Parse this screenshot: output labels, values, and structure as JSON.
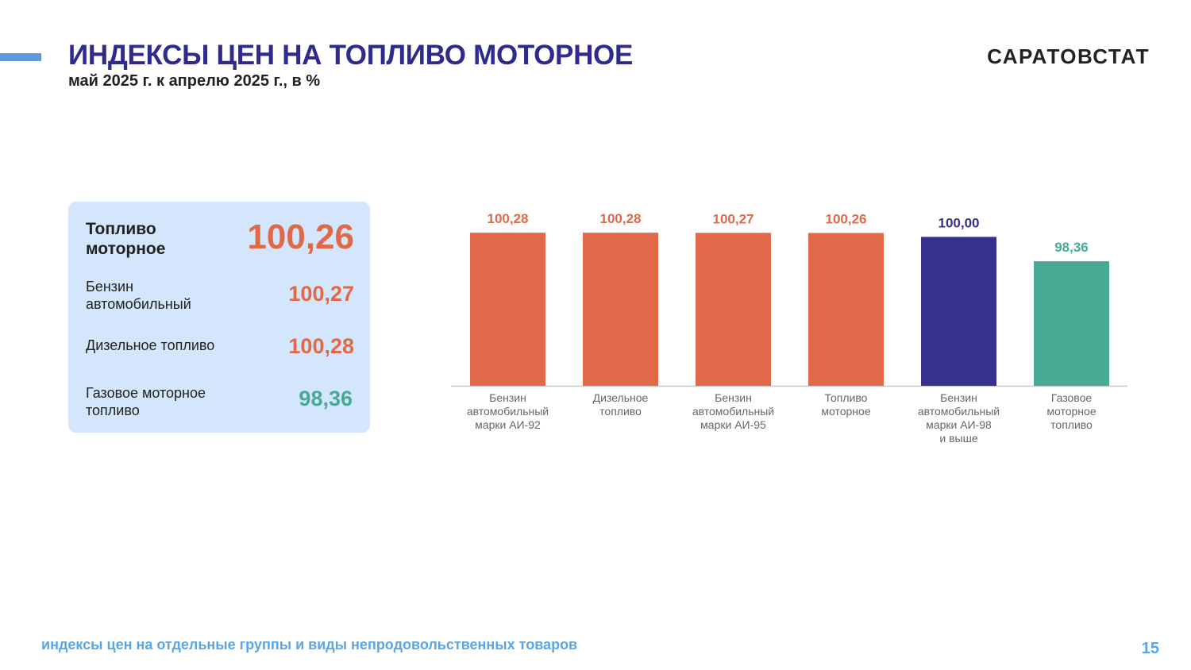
{
  "header": {
    "title": "ИНДЕКСЫ ЦЕН НА ТОПЛИВО МОТОРНОЕ",
    "subtitle": "май 2025 г. к апрелю 2025 г., в %",
    "brand": "САРАТОВСТАТ"
  },
  "summary": {
    "main": {
      "label": "Топливо моторное",
      "value": "100,26"
    },
    "rows": [
      {
        "label": "Бензин автомобильный",
        "value": "100,27"
      },
      {
        "label": "Дизельное топливо",
        "value": "100,28"
      },
      {
        "label": "Газовое моторное топливо",
        "value": "98,36"
      }
    ]
  },
  "colors": {
    "orange": "#e0694a",
    "navy": "#36308f",
    "teal": "#48a995",
    "title_blue": "#2e2b8c",
    "card_bg": "#d3e6fb",
    "footer_blue": "#5aa5e6"
  },
  "chart_data": {
    "type": "bar",
    "categories": [
      [
        "Бензин",
        "автомобильный",
        "марки АИ-92"
      ],
      [
        "Дизельное",
        "топливо"
      ],
      [
        "Бензин",
        "автомобильный",
        "марки АИ-95"
      ],
      [
        "Топливо",
        "моторное"
      ],
      [
        "Бензин",
        "автомобильный",
        "марки АИ-98",
        "и выше"
      ],
      [
        "Газовое",
        "моторное",
        "топливо"
      ]
    ],
    "values": [
      100.28,
      100.28,
      100.27,
      100.26,
      100.0,
      98.36
    ],
    "value_labels": [
      "100,28",
      "100,28",
      "100,27",
      "100,26",
      "100,00",
      "98,36"
    ],
    "bar_colors": [
      "#e0694a",
      "#e0694a",
      "#e0694a",
      "#e0694a",
      "#36308f",
      "#48a995"
    ],
    "ylim": [
      90,
      100.5
    ],
    "grid": false,
    "legend": "none"
  },
  "footer": {
    "text": "индексы цен на отдельные группы и виды непродовольственных товаров",
    "page": "15"
  }
}
